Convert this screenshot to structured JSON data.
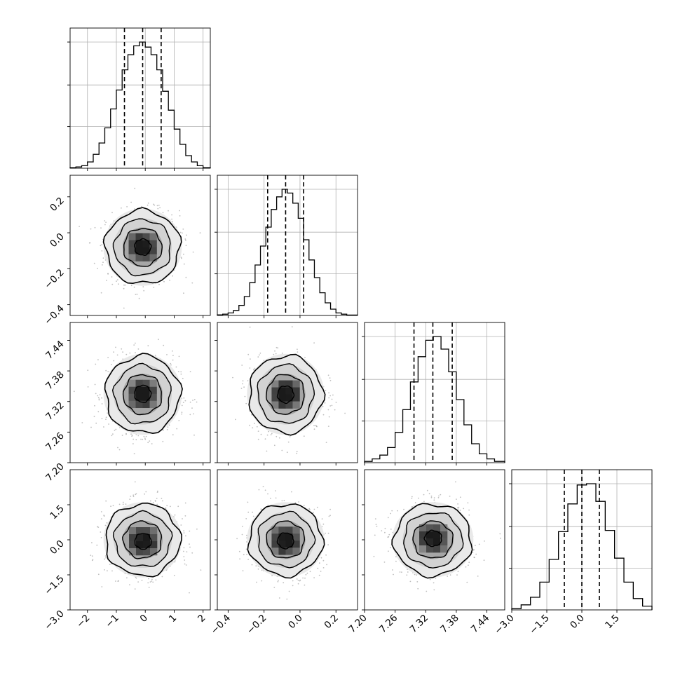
{
  "chart_data": {
    "type": "corner",
    "parameters": [
      {
        "index": 0,
        "range": [
          -2.6,
          2.25
        ],
        "ticks": [
          "−2",
          "−1",
          "0",
          "1",
          "2"
        ],
        "tick_values": [
          -2,
          -1,
          0,
          1,
          2
        ],
        "histogram": {
          "bin_edges": [
            -2.6,
            -2.4,
            -2.2,
            -2.0,
            -1.8,
            -1.6,
            -1.4,
            -1.2,
            -1.0,
            -0.8,
            -0.6,
            -0.4,
            -0.2,
            0.0,
            0.2,
            0.4,
            0.6,
            0.8,
            1.0,
            1.2,
            1.4,
            1.6,
            1.8,
            2.0,
            2.25
          ],
          "counts": [
            0.005,
            0.01,
            0.02,
            0.05,
            0.11,
            0.2,
            0.32,
            0.47,
            0.62,
            0.78,
            0.9,
            0.97,
            1.0,
            0.96,
            0.9,
            0.78,
            0.61,
            0.46,
            0.31,
            0.19,
            0.1,
            0.05,
            0.02,
            0.005
          ]
        },
        "quantiles": [
          -0.72,
          -0.09,
          0.55
        ],
        "mean": -0.09,
        "sd": 0.63
      },
      {
        "index": 1,
        "range": [
          -0.46,
          0.32
        ],
        "ticks": [
          "−0.4",
          "−0.2",
          "0.0",
          "0.2"
        ],
        "tick_values": [
          -0.4,
          -0.2,
          0.0,
          0.2
        ],
        "histogram": {
          "bin_edges": [
            -0.46,
            -0.43,
            -0.4,
            -0.37,
            -0.34,
            -0.31,
            -0.28,
            -0.25,
            -0.22,
            -0.19,
            -0.16,
            -0.13,
            -0.1,
            -0.07,
            -0.04,
            -0.01,
            0.02,
            0.05,
            0.08,
            0.11,
            0.14,
            0.17,
            0.2,
            0.23,
            0.26,
            0.32
          ],
          "counts": [
            0.005,
            0.01,
            0.02,
            0.04,
            0.08,
            0.15,
            0.26,
            0.4,
            0.55,
            0.7,
            0.84,
            0.94,
            1.0,
            0.97,
            0.89,
            0.77,
            0.6,
            0.44,
            0.3,
            0.18,
            0.1,
            0.05,
            0.02,
            0.01,
            0.003
          ]
        },
        "quantiles": [
          -0.18,
          -0.08,
          0.02
        ],
        "mean": -0.08,
        "sd": 0.1
      },
      {
        "index": 2,
        "range": [
          7.2,
          7.475
        ],
        "ticks": [
          "7.20",
          "7.26",
          "7.32",
          "7.38",
          "7.44"
        ],
        "tick_values": [
          7.2,
          7.26,
          7.32,
          7.38,
          7.44
        ],
        "histogram": {
          "bin_edges": [
            7.2,
            7.215,
            7.23,
            7.245,
            7.26,
            7.275,
            7.29,
            7.305,
            7.32,
            7.335,
            7.35,
            7.365,
            7.38,
            7.395,
            7.41,
            7.425,
            7.44,
            7.455,
            7.475
          ],
          "counts": [
            0.01,
            0.03,
            0.06,
            0.12,
            0.24,
            0.42,
            0.64,
            0.84,
            0.97,
            1.0,
            0.9,
            0.72,
            0.5,
            0.3,
            0.15,
            0.07,
            0.03,
            0.01
          ]
        },
        "quantiles": [
          7.297,
          7.334,
          7.372
        ],
        "mean": 7.334,
        "sd": 0.037
      },
      {
        "index": 3,
        "range": [
          -3.0,
          3.0
        ],
        "ticks": [
          "−3.0",
          "−1.5",
          "0.0",
          "1.5"
        ],
        "tick_values": [
          -3.0,
          -1.5,
          0.0,
          1.5
        ],
        "histogram": {
          "bin_edges": [
            -3.0,
            -2.6,
            -2.2,
            -1.8,
            -1.4,
            -1.0,
            -0.6,
            -0.2,
            0.2,
            0.6,
            1.0,
            1.4,
            1.8,
            2.2,
            2.6,
            3.0
          ],
          "counts": [
            0.01,
            0.04,
            0.1,
            0.22,
            0.4,
            0.62,
            0.84,
            0.99,
            1.0,
            0.86,
            0.63,
            0.41,
            0.22,
            0.09,
            0.03
          ]
        },
        "quantiles": [
          -0.75,
          0.0,
          0.75
        ],
        "mean": 0.0,
        "sd": 0.75
      }
    ],
    "contour_levels_sigma": [
      0.5,
      1.0,
      1.5,
      2.0
    ],
    "pair_offsets": {
      "1-0": [
        0.0,
        0.0
      ],
      "2-0": [
        0.0,
        0.03
      ],
      "3-0": [
        0.02,
        -0.08
      ],
      "2-1": [
        0.0,
        0.0
      ],
      "3-1": [
        0.0,
        -0.05
      ],
      "3-2": [
        0.02,
        0.08
      ]
    },
    "colors": {
      "line": "#000000",
      "grid": "#b0b0b0",
      "scatter": "#8a8a8a",
      "density_dark": "#1a1a1a",
      "density_light": "#f2f2f2"
    },
    "grid": true,
    "quantile_style": "dashed"
  }
}
